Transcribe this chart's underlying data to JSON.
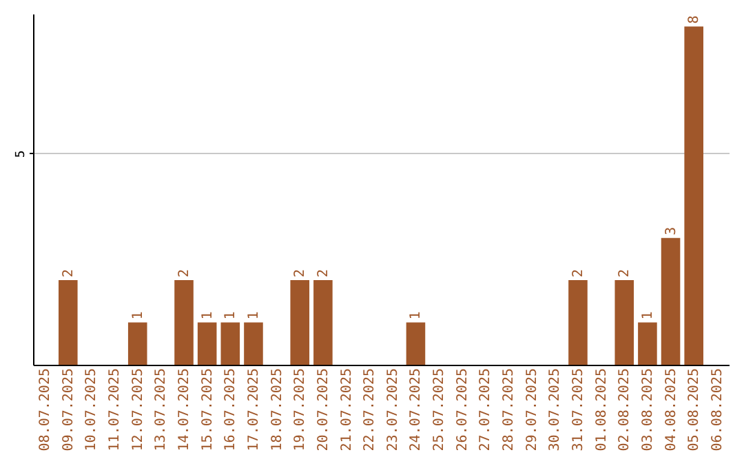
{
  "chart_data": {
    "type": "bar",
    "categories": [
      "08.07.2025",
      "09.07.2025",
      "10.07.2025",
      "11.07.2025",
      "12.07.2025",
      "13.07.2025",
      "14.07.2025",
      "15.07.2025",
      "16.07.2025",
      "17.07.2025",
      "18.07.2025",
      "19.07.2025",
      "20.07.2025",
      "21.07.2025",
      "22.07.2025",
      "23.07.2025",
      "24.07.2025",
      "25.07.2025",
      "26.07.2025",
      "27.07.2025",
      "28.07.2025",
      "29.07.2025",
      "30.07.2025",
      "31.07.2025",
      "01.08.2025",
      "02.08.2025",
      "03.08.2025",
      "04.08.2025",
      "05.08.2025",
      "06.08.2025"
    ],
    "values": [
      0,
      2,
      0,
      0,
      1,
      0,
      2,
      1,
      1,
      1,
      0,
      2,
      2,
      0,
      0,
      0,
      1,
      0,
      0,
      0,
      0,
      0,
      0,
      2,
      0,
      2,
      1,
      3,
      8,
      0
    ],
    "value_labels": [
      null,
      "2",
      null,
      null,
      "1",
      null,
      "2",
      "1",
      "1",
      "1",
      null,
      "2",
      "2",
      null,
      null,
      null,
      "1",
      null,
      null,
      null,
      null,
      null,
      null,
      "2",
      null,
      "2",
      "1",
      "3",
      "8",
      null
    ],
    "color": "#a0572a",
    "ylim": [
      0,
      8.3
    ],
    "yticks": [
      5
    ],
    "grid": "y"
  }
}
